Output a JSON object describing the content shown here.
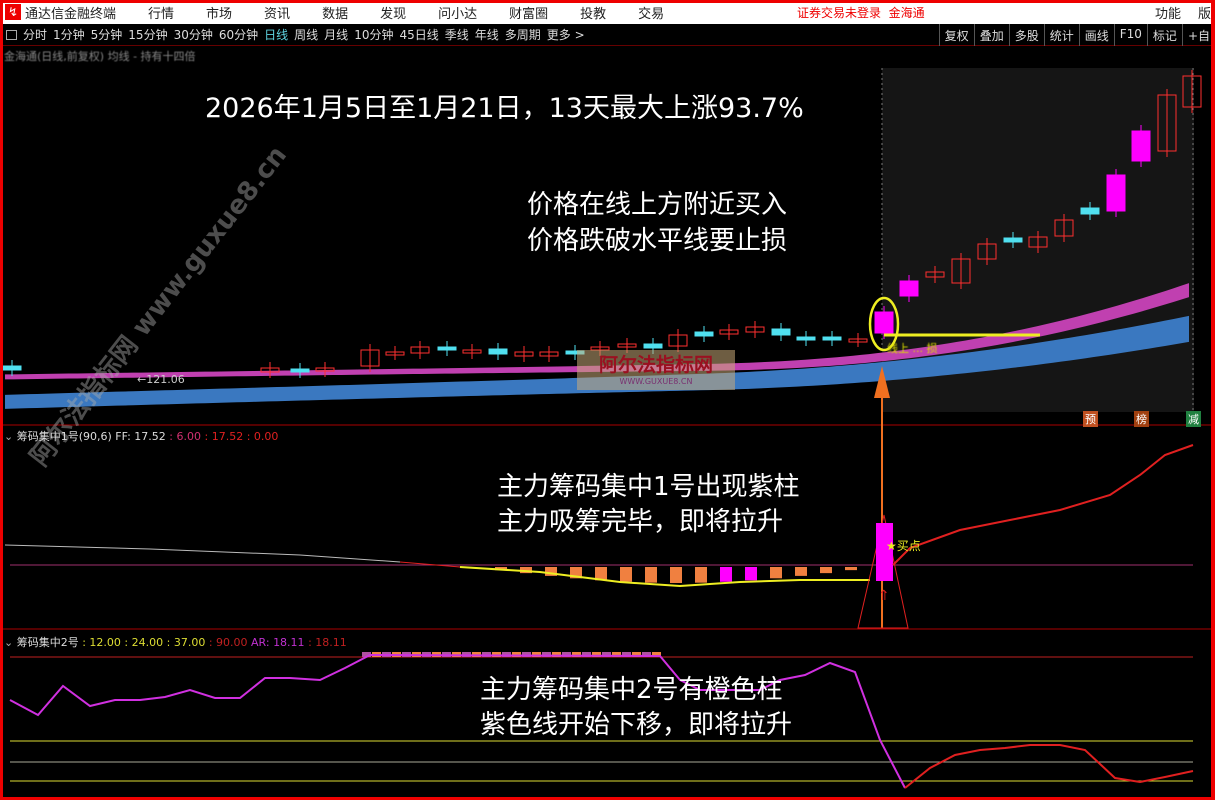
{
  "app": {
    "title": "通达信金融终端",
    "menu": [
      "行情",
      "市场",
      "资讯",
      "数据",
      "发现",
      "问小达",
      "财富圈",
      "投教",
      "交易"
    ],
    "login_status": "证券交易未登录",
    "broker": "金海通",
    "func": "功能",
    "ver": "版"
  },
  "toolbar": {
    "periods": [
      "分时",
      "1分钟",
      "5分钟",
      "15分钟",
      "30分钟",
      "60分钟",
      "日线",
      "周线",
      "月线",
      "10分钟",
      "45日线",
      "季线",
      "年线",
      "多周期",
      "更多 >"
    ],
    "active": "日线",
    "tools": [
      "复权",
      "叠加",
      "多股",
      "统计",
      "画线",
      "F10",
      "标记",
      "+自"
    ]
  },
  "main": {
    "stock_line": "金海通(日线,前复权) 均线 - 持有十四倍",
    "price_label": "←121.06",
    "buy_label": "线上 ... 损",
    "tags": [
      "预",
      "榜",
      "减"
    ],
    "colors": {
      "up": "#ff3030",
      "down": "#50e0f0",
      "strong": "#ff00ff",
      "band_upper": "#c040b0",
      "band_lower": "#3a78c0"
    }
  },
  "annotations": {
    "headline": "2026年1月5日至1月21日，13天最大上涨93.7%",
    "buy_rule_1": "价格在线上方附近买入",
    "buy_rule_2": "价格跌破水平线要止损",
    "ind1_note_1": "主力筹码集中1号出现紫柱",
    "ind1_note_2": "主力吸筹完毕，即将拉升",
    "ind2_note_1": "主力筹码集中2号有橙色柱",
    "ind2_note_2": "紫色线开始下移，即将拉升"
  },
  "indicator1": {
    "name": "筹码集中1号(90,6)",
    "ff": "FF: 17.52",
    "v1": ": 6.00",
    "v2": ": 17.52",
    "v3": ": 0.00",
    "buy_point": "★买点"
  },
  "indicator2": {
    "name": "筹码集中2号",
    "v1": ": 12.00",
    "v2": ": 24.00",
    "v3": ": 37.00",
    "v4": ": 90.00",
    "ar": "AR: 18.11",
    "ar2": ": 18.11"
  },
  "watermark": {
    "cn": "阿尔法指标网",
    "url": "WWW.GUXUE8.CN",
    "diag": "阿尔法指标网 www.guxue8.cn"
  }
}
